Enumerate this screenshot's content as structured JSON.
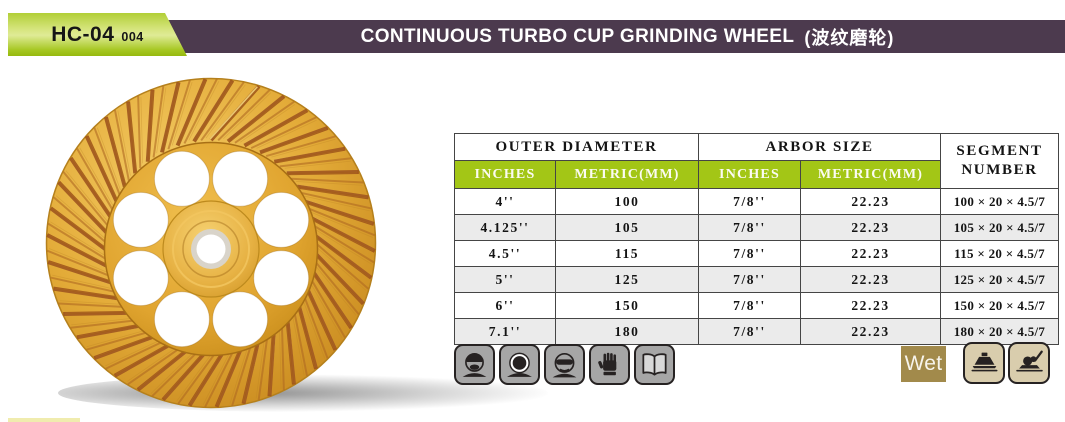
{
  "page": {
    "model": "HC-04",
    "model_code": "004",
    "title": "CONTINUOUS TURBO CUP GRINDING WHEEL",
    "title_cn": "(波纹磨轮)"
  },
  "spec_table": {
    "group_headers": [
      "OUTER DIAMETER",
      "ARBOR SIZE",
      "SEGMENT NUMBER"
    ],
    "sub_headers": [
      "INCHES",
      "METRIC(MM)",
      "INCHES",
      "METRIC(MM)"
    ],
    "rows": [
      [
        "4''",
        "100",
        "7/8''",
        "22.23",
        "100 × 20 × 4.5/7"
      ],
      [
        "4.125''",
        "105",
        "7/8''",
        "22.23",
        "105 × 20 × 4.5/7"
      ],
      [
        "4.5''",
        "115",
        "7/8''",
        "22.23",
        "115 × 20 × 4.5/7"
      ],
      [
        "5''",
        "125",
        "7/8''",
        "22.23",
        "125 × 20 × 4.5/7"
      ],
      [
        "6''",
        "150",
        "7/8''",
        "22.23",
        "150 × 20 × 4.5/7"
      ],
      [
        "7.1''",
        "180",
        "7/8''",
        "22.23",
        "180 × 20 × 4.5/7"
      ]
    ]
  },
  "badges": {
    "wet_label": "Wet"
  },
  "icons": {
    "safety": [
      "dust-mask-icon",
      "safety-helmet-icon",
      "goggles-icon",
      "gloves-icon",
      "instruction-manual-icon"
    ],
    "usage": [
      "cup-wheel-icon",
      "floor-grinder-icon"
    ]
  },
  "theme": {
    "green": "#a3c616",
    "orange": "#ee8100",
    "purple": "#4c3a4e",
    "wet_brown": "#a28a4b",
    "row_alt": "#ebebeb",
    "gold": "#e0a93a"
  }
}
